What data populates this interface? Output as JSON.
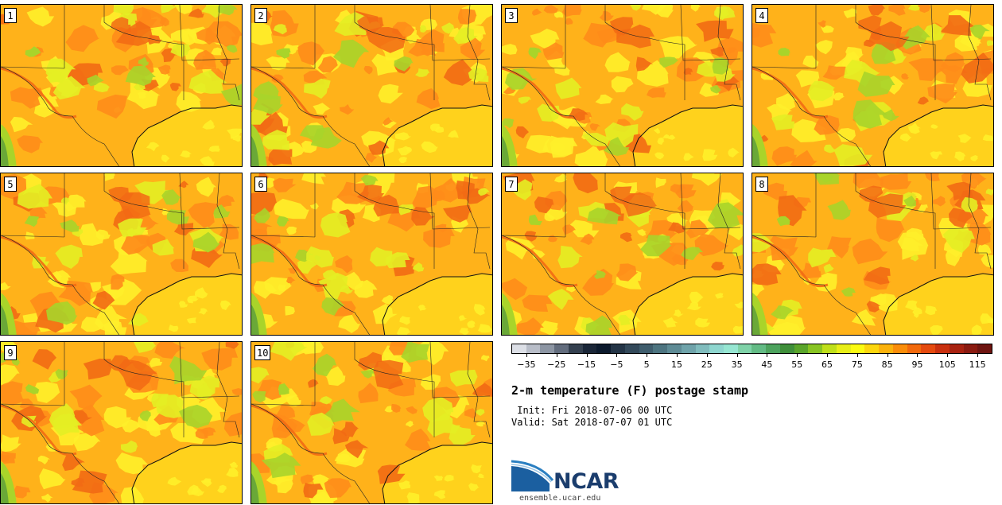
{
  "panels": [
    {
      "label": "1",
      "seed": 11
    },
    {
      "label": "2",
      "seed": 23
    },
    {
      "label": "3",
      "seed": 37
    },
    {
      "label": "4",
      "seed": 41
    },
    {
      "label": "5",
      "seed": 53
    },
    {
      "label": "6",
      "seed": 67
    },
    {
      "label": "7",
      "seed": 71
    },
    {
      "label": "8",
      "seed": 83
    },
    {
      "label": "9",
      "seed": 97
    },
    {
      "label": "10",
      "seed": 101
    }
  ],
  "colorbar": {
    "colors": [
      "#dcdfe6",
      "#b8bdc8",
      "#8c95a3",
      "#626c7d",
      "#34404f",
      "#1a2638",
      "#0c1a2d",
      "#233446",
      "#33495a",
      "#3f5d6d",
      "#4d7480",
      "#5e8b95",
      "#6fa3aa",
      "#80bcbd",
      "#8ed6cf",
      "#96e6d2",
      "#7fd2a8",
      "#63bb85",
      "#4da35e",
      "#3f8f3a",
      "#5aa52b",
      "#88c423",
      "#bfdf1a",
      "#e8ee18",
      "#fbfb12",
      "#fcd60e",
      "#fbb20c",
      "#fa8d0a",
      "#f2690c",
      "#e54a0f",
      "#c9300f",
      "#a82210",
      "#8a1a10",
      "#6e1410"
    ],
    "tick_labels": [
      "−35",
      "−25",
      "−15",
      "−5",
      "5",
      "15",
      "25",
      "35",
      "45",
      "55",
      "65",
      "75",
      "85",
      "95",
      "105",
      "115"
    ],
    "tick_values": [
      -35,
      -25,
      -15,
      -5,
      5,
      15,
      25,
      35,
      45,
      55,
      65,
      75,
      85,
      95,
      105,
      115
    ],
    "min": -40,
    "max": 120
  },
  "title": "2-m temperature (F) postage stamp",
  "init": " Init: Fri 2018-07-06 00 UTC",
  "valid": "Valid: Sat 2018-07-07 01 UTC",
  "logo": {
    "text": "NCAR",
    "url": "ensemble.ucar.edu",
    "color": "#1b3d6d",
    "swoosh": "#2a7fc1"
  },
  "map_colors": {
    "gulf": "#ffd21c",
    "base": "#ffb21a",
    "warm": "#ff8c1a",
    "hot": "#f26a14",
    "mild": "#fff02a",
    "cool": "#e4ee24",
    "green": "#a9d42a",
    "darkgreen": "#6aa838"
  }
}
